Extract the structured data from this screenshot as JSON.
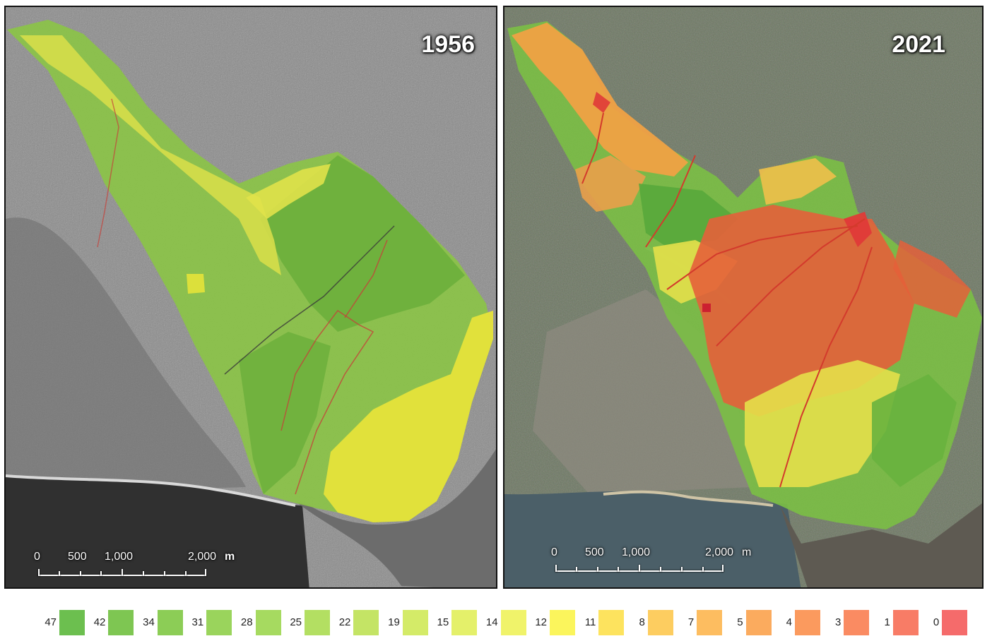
{
  "panels": [
    {
      "year": "1956",
      "scale": {
        "ticks": [
          "0",
          "500",
          "1,000",
          "2,000"
        ],
        "unit": "m"
      }
    },
    {
      "year": "2021",
      "scale": {
        "ticks": [
          "0",
          "500",
          "1,000",
          "2,000"
        ],
        "unit": "m"
      }
    }
  ],
  "legend": [
    {
      "label": "47",
      "color": "#6cbf4f"
    },
    {
      "label": "42",
      "color": "#7ec652"
    },
    {
      "label": "34",
      "color": "#8ccd56"
    },
    {
      "label": "31",
      "color": "#9ad45c"
    },
    {
      "label": "28",
      "color": "#a6da60"
    },
    {
      "label": "25",
      "color": "#b3df62"
    },
    {
      "label": "22",
      "color": "#c4e465"
    },
    {
      "label": "19",
      "color": "#d4eb68"
    },
    {
      "label": "15",
      "color": "#e4f06a"
    },
    {
      "label": "14",
      "color": "#f0f36a"
    },
    {
      "label": "12",
      "color": "#fbf55c"
    },
    {
      "label": "11",
      "color": "#fde35e"
    },
    {
      "label": "8",
      "color": "#fdcd60"
    },
    {
      "label": "7",
      "color": "#fdbd60"
    },
    {
      "label": "5",
      "color": "#fbab5e"
    },
    {
      "label": "4",
      "color": "#fb9a5e"
    },
    {
      "label": "3",
      "color": "#fa8b62"
    },
    {
      "label": "1",
      "color": "#f87c66"
    },
    {
      "label": "0",
      "color": "#f56b6b"
    }
  ],
  "colors": {
    "green_dark": "#5fa83a",
    "green": "#7fbf3f",
    "green_light": "#a2cf47",
    "yellow_green": "#c9dc4a",
    "yellow": "#e4e33a",
    "orange": "#e98f3c",
    "red_orange": "#e15c32",
    "road_red": "#d33a2c"
  },
  "icons": {
    "map_left": "orthophoto-1956-map",
    "map_right": "orthophoto-2021-map"
  }
}
